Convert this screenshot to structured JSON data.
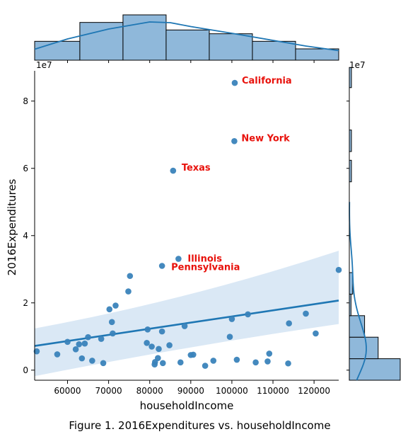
{
  "caption": "Figure 1. 2016Expenditures vs. householdIncome",
  "colors": {
    "point": "#3a83bb",
    "line": "#1f77b4",
    "band": "#c6dbef",
    "bar": "#8fb8da",
    "annotation": "#e8120c"
  },
  "chart_data": {
    "type": "scatter",
    "subtype": "jointplot with regression line and marginal histograms",
    "xlabel": "householdIncome",
    "ylabel": "2016Expenditures",
    "y_offset_label": "1e7",
    "x_marginal_offset_label": "1e7",
    "xlim": [
      52000,
      126000
    ],
    "ylim": [
      -3000000,
      89000000
    ],
    "xticks": [
      60000,
      70000,
      80000,
      90000,
      100000,
      110000,
      120000
    ],
    "xtick_labels": [
      "60000",
      "70000",
      "80000",
      "90000",
      "100000",
      "110000",
      "120000"
    ],
    "yticks": [
      0,
      20000000,
      40000000,
      60000000,
      80000000
    ],
    "ytick_labels": [
      "0",
      "2",
      "4",
      "6",
      "8"
    ],
    "points": [
      {
        "x": 52500,
        "y": 5600000
      },
      {
        "x": 57500,
        "y": 4700000
      },
      {
        "x": 60000,
        "y": 8400000
      },
      {
        "x": 62000,
        "y": 6200000
      },
      {
        "x": 62800,
        "y": 7700000
      },
      {
        "x": 63500,
        "y": 3500000
      },
      {
        "x": 64200,
        "y": 7900000
      },
      {
        "x": 65000,
        "y": 9800000
      },
      {
        "x": 66000,
        "y": 2800000
      },
      {
        "x": 68200,
        "y": 9300000
      },
      {
        "x": 68700,
        "y": 2100000
      },
      {
        "x": 70200,
        "y": 18100000
      },
      {
        "x": 70800,
        "y": 14300000
      },
      {
        "x": 71000,
        "y": 10900000
      },
      {
        "x": 71700,
        "y": 19200000
      },
      {
        "x": 74800,
        "y": 23400000
      },
      {
        "x": 75200,
        "y": 28000000
      },
      {
        "x": 79300,
        "y": 8100000
      },
      {
        "x": 79500,
        "y": 12100000
      },
      {
        "x": 80500,
        "y": 7000000
      },
      {
        "x": 81200,
        "y": 1700000
      },
      {
        "x": 81300,
        "y": 2400000
      },
      {
        "x": 82000,
        "y": 3600000
      },
      {
        "x": 82200,
        "y": 6300000
      },
      {
        "x": 83000,
        "y": 11500000
      },
      {
        "x": 83200,
        "y": 2100000
      },
      {
        "x": 84800,
        "y": 7400000
      },
      {
        "x": 83000,
        "y": 31000000
      },
      {
        "x": 87500,
        "y": 2300000
      },
      {
        "x": 88500,
        "y": 13100000
      },
      {
        "x": 90000,
        "y": 4500000
      },
      {
        "x": 90600,
        "y": 4600000
      },
      {
        "x": 93500,
        "y": 1300000
      },
      {
        "x": 95500,
        "y": 2800000
      },
      {
        "x": 99500,
        "y": 9900000
      },
      {
        "x": 100000,
        "y": 15200000
      },
      {
        "x": 101200,
        "y": 3100000
      },
      {
        "x": 103900,
        "y": 16600000
      },
      {
        "x": 105800,
        "y": 2300000
      },
      {
        "x": 108700,
        "y": 2600000
      },
      {
        "x": 109100,
        "y": 4900000
      },
      {
        "x": 113700,
        "y": 2000000
      },
      {
        "x": 113900,
        "y": 13900000
      },
      {
        "x": 118000,
        "y": 16800000
      },
      {
        "x": 120400,
        "y": 10900000
      },
      {
        "x": 126000,
        "y": 29800000
      }
    ],
    "labeled_points": [
      {
        "label": "California",
        "x": 100700,
        "y": 85400000
      },
      {
        "label": "New York",
        "x": 100600,
        "y": 68100000
      },
      {
        "label": "Texas",
        "x": 85700,
        "y": 59300000
      },
      {
        "label": "Illinois",
        "x": 87000,
        "y": 33100000
      },
      {
        "label": "Pennsylvania",
        "x": 83000,
        "y": 31000000
      }
    ],
    "regression": {
      "x_range": [
        52000,
        126000
      ],
      "y_range": [
        7200000,
        20700000
      ],
      "ci_lower": [
        -1800000,
        13700000
      ],
      "ci_upper": [
        12400000,
        35500000
      ]
    },
    "x_marginal_hist": {
      "bin_edges": [
        52000,
        63000,
        73500,
        84000,
        94500,
        105000,
        115500,
        126000
      ],
      "counts": [
        5,
        10,
        12,
        8,
        7,
        5,
        3
      ],
      "kde_x": [
        52000,
        60000,
        70000,
        80000,
        85000,
        90000,
        100000,
        110000,
        118000,
        126000
      ],
      "kde_y": [
        3.1,
        6.0,
        8.8,
        10.8,
        10.6,
        9.5,
        7.6,
        5.6,
        4.0,
        2.7
      ]
    },
    "y_marginal_hist": {
      "bin_edges": [
        -3000000,
        3400000,
        9800000,
        16200000,
        22600000,
        29000000,
        35400000
      ],
      "counts": [
        30,
        17,
        9,
        1,
        2,
        0
      ],
      "outlier_bins": [
        {
          "low": 56000000,
          "high": 62400000,
          "count": 1
        },
        {
          "low": 65000000,
          "high": 71400000,
          "count": 1
        },
        {
          "low": 84000000,
          "high": 90000000,
          "count": 1
        }
      ]
    }
  }
}
